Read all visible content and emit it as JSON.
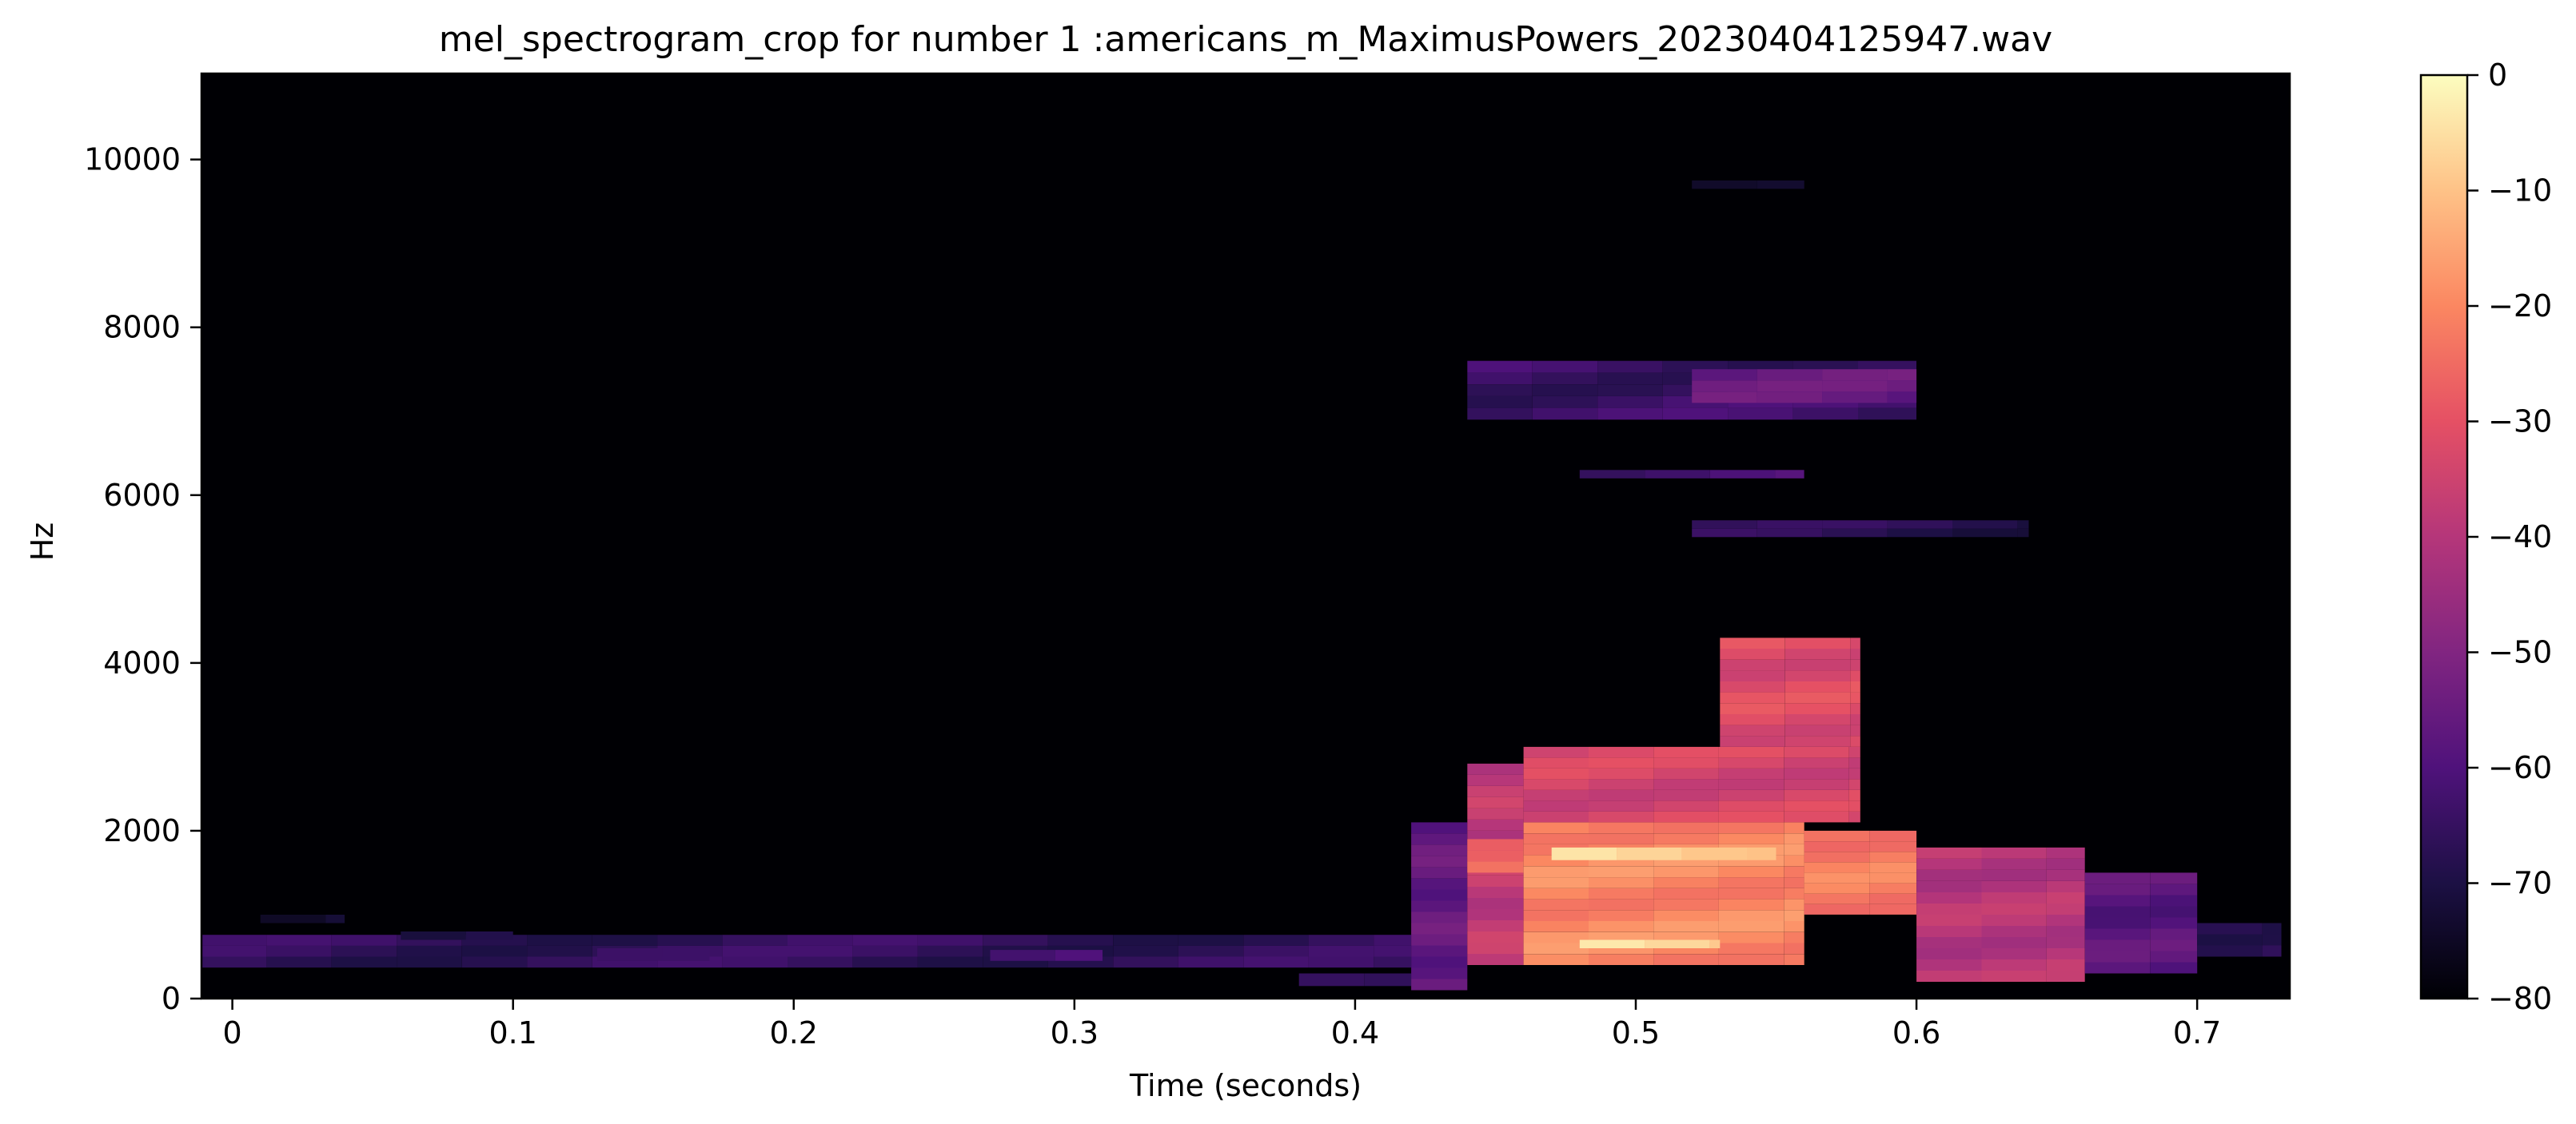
{
  "chart_data": {
    "type": "heatmap",
    "title": "mel_spectrogram_crop for number 1 :americans_m_MaximusPowers_20230404125947.wav",
    "xlabel": "Time (seconds)",
    "ylabel": "Hz",
    "xlim": [
      -0.011,
      0.733
    ],
    "ylim": [
      0,
      11025
    ],
    "x_ticks": [
      0,
      0.1,
      0.2,
      0.3,
      0.4,
      0.5,
      0.6,
      0.7
    ],
    "x_tick_labels": [
      "0",
      "0.1",
      "0.2",
      "0.3",
      "0.4",
      "0.5",
      "0.6",
      "0.7"
    ],
    "y_ticks": [
      0,
      2000,
      4000,
      6000,
      8000,
      10000
    ],
    "y_tick_labels": [
      "0",
      "2000",
      "4000",
      "6000",
      "8000",
      "10000"
    ],
    "colorbar": {
      "colormap": "magma",
      "range": [
        -80,
        0
      ],
      "ticks": [
        0,
        -10,
        -20,
        -30,
        -40,
        -50,
        -60,
        -70,
        -80
      ],
      "tick_labels": [
        "0",
        "−10",
        "−20",
        "−30",
        "−40",
        "−50",
        "−60",
        "−70",
        "−80"
      ]
    },
    "background_db": -80,
    "time_frame_s": 0.0232,
    "regions": [
      {
        "t": [
          -0.011,
          0.42
        ],
        "f": [
          370,
          760
        ],
        "db": -66
      },
      {
        "t": [
          0.01,
          0.04
        ],
        "f": [
          900,
          1000
        ],
        "db": -74
      },
      {
        "t": [
          0.06,
          0.1
        ],
        "f": [
          700,
          800
        ],
        "db": -68
      },
      {
        "t": [
          0.13,
          0.17
        ],
        "f": [
          450,
          600
        ],
        "db": -60
      },
      {
        "t": [
          0.27,
          0.31
        ],
        "f": [
          450,
          580
        ],
        "db": -60
      },
      {
        "t": [
          0.38,
          0.42
        ],
        "f": [
          150,
          300
        ],
        "db": -62
      },
      {
        "t": [
          0.42,
          0.44
        ],
        "f": [
          100,
          2100
        ],
        "db": -56
      },
      {
        "t": [
          0.44,
          0.46
        ],
        "f": [
          400,
          2800
        ],
        "db": -38
      },
      {
        "t": [
          0.44,
          0.46
        ],
        "f": [
          1500,
          1900
        ],
        "db": -24
      },
      {
        "t": [
          0.46,
          0.56
        ],
        "f": [
          400,
          2100
        ],
        "db": -20
      },
      {
        "t": [
          0.47,
          0.55
        ],
        "f": [
          1650,
          1800
        ],
        "db": -6
      },
      {
        "t": [
          0.48,
          0.53
        ],
        "f": [
          600,
          700
        ],
        "db": -6
      },
      {
        "t": [
          0.46,
          0.58
        ],
        "f": [
          2100,
          3000
        ],
        "db": -34
      },
      {
        "t": [
          0.53,
          0.58
        ],
        "f": [
          3000,
          4300
        ],
        "db": -32
      },
      {
        "t": [
          0.56,
          0.6
        ],
        "f": [
          1000,
          2000
        ],
        "db": -22
      },
      {
        "t": [
          0.6,
          0.66
        ],
        "f": [
          200,
          1800
        ],
        "db": -40
      },
      {
        "t": [
          0.66,
          0.7
        ],
        "f": [
          300,
          1500
        ],
        "db": -58
      },
      {
        "t": [
          0.7,
          0.73
        ],
        "f": [
          500,
          900
        ],
        "db": -66
      },
      {
        "t": [
          0.44,
          0.6
        ],
        "f": [
          6900,
          7600
        ],
        "db": -64
      },
      {
        "t": [
          0.52,
          0.6
        ],
        "f": [
          7100,
          7500
        ],
        "db": -56
      },
      {
        "t": [
          0.48,
          0.56
        ],
        "f": [
          6200,
          6300
        ],
        "db": -62
      },
      {
        "t": [
          0.52,
          0.64
        ],
        "f": [
          5500,
          5700
        ],
        "db": -68
      },
      {
        "t": [
          0.52,
          0.56
        ],
        "f": [
          9650,
          9750
        ],
        "db": -70
      }
    ]
  }
}
